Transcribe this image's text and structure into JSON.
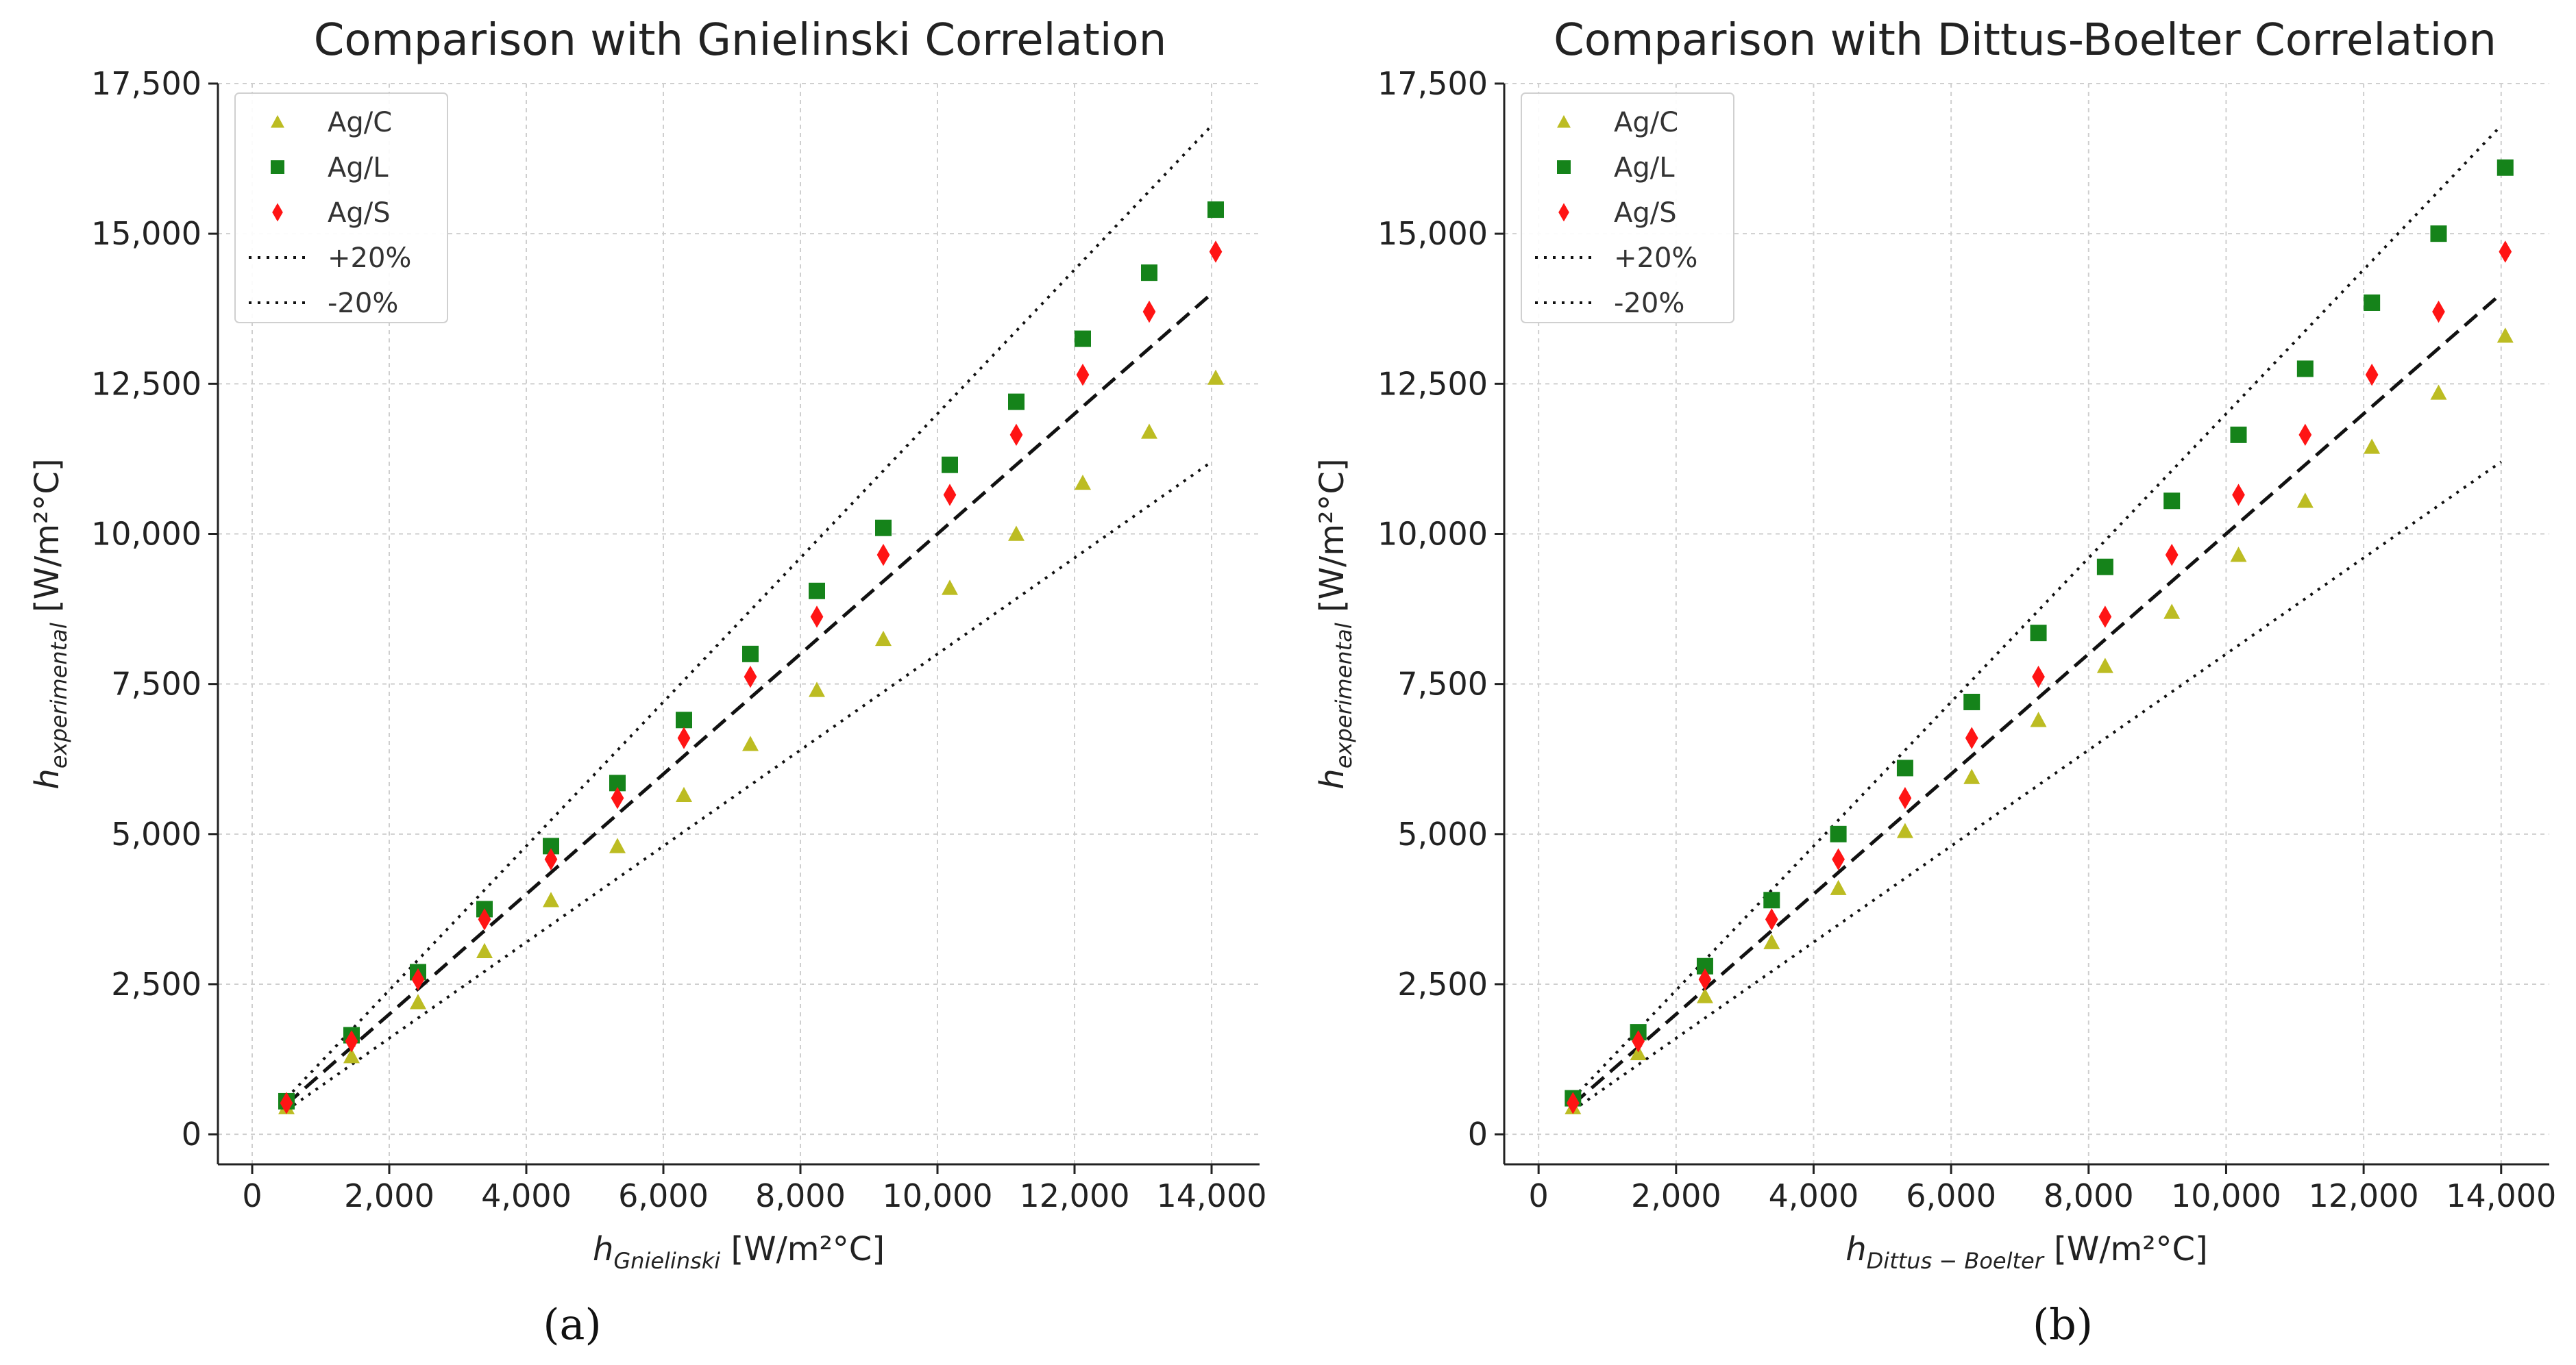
{
  "chart_data": [
    {
      "type": "scatter",
      "title": "Comparison with Gnielinski Correlation",
      "xlabel_sym": "h",
      "xlabel_sub": "Gnielinski",
      "xlabel_unit": " [W/m²°C]",
      "ylabel_sym": "h",
      "ylabel_sub": "experimental",
      "ylabel_unit": " [W/m²°C]",
      "xlim": [
        -500,
        14700
      ],
      "ylim": [
        -500,
        17500
      ],
      "xticks": [
        0,
        2000,
        4000,
        6000,
        8000,
        10000,
        12000,
        14000
      ],
      "xtick_labels": [
        "0",
        "2,000",
        "4,000",
        "6,000",
        "8,000",
        "10,000",
        "12,000",
        "14,000"
      ],
      "yticks": [
        0,
        2500,
        5000,
        7500,
        10000,
        12500,
        15000,
        17500
      ],
      "ytick_labels": [
        "0",
        "2,500",
        "5,000",
        "7,500",
        "10,000",
        "12,500",
        "15,000",
        "17,500"
      ],
      "grid": true,
      "legend_position": "top-left",
      "x": [
        500,
        1450,
        2420,
        3390,
        4360,
        5330,
        6300,
        7270,
        8240,
        9210,
        10180,
        11150,
        12120,
        13090,
        14060
      ],
      "series": [
        {
          "name": "Ag/C",
          "marker": "triangle",
          "color": "#bcbc22",
          "values": [
            450,
            1300,
            2200,
            3050,
            3900,
            4800,
            5650,
            6500,
            7400,
            8250,
            9100,
            10000,
            10850,
            11700,
            12600
          ]
        },
        {
          "name": "Ag/L",
          "marker": "square",
          "color": "#15831a",
          "values": [
            550,
            1650,
            2700,
            3750,
            4800,
            5850,
            6900,
            8000,
            9050,
            10100,
            11150,
            12200,
            13250,
            14350,
            15400
          ]
        },
        {
          "name": "Ag/S",
          "marker": "diamond",
          "color": "#ff1414",
          "values": [
            520,
            1550,
            2580,
            3580,
            4580,
            5600,
            6600,
            7620,
            8620,
            9650,
            10650,
            11650,
            12650,
            13700,
            14700
          ]
        }
      ],
      "reference_lines": [
        {
          "name": "+20%",
          "factor": 1.2,
          "style": "dotted"
        },
        {
          "name": "-20%",
          "factor": 0.8,
          "style": "dotted"
        },
        {
          "name": "",
          "factor": 1.0,
          "style": "dashed"
        }
      ],
      "line_range": [
        500,
        14000
      ]
    },
    {
      "type": "scatter",
      "title": "Comparison with Dittus-Boelter Correlation",
      "xlabel_sym": "h",
      "xlabel_sub": "Dittus − Boelter",
      "xlabel_unit": " [W/m²°C]",
      "ylabel_sym": "h",
      "ylabel_sub": "experimental",
      "ylabel_unit": " [W/m²°C]",
      "xlim": [
        -500,
        14700
      ],
      "ylim": [
        -500,
        17500
      ],
      "xticks": [
        0,
        2000,
        4000,
        6000,
        8000,
        10000,
        12000,
        14000
      ],
      "xtick_labels": [
        "0",
        "2,000",
        "4,000",
        "6,000",
        "8,000",
        "10,000",
        "12,000",
        "14,000"
      ],
      "yticks": [
        0,
        2500,
        5000,
        7500,
        10000,
        12500,
        15000,
        17500
      ],
      "ytick_labels": [
        "0",
        "2,500",
        "5,000",
        "7,500",
        "10,000",
        "12,500",
        "15,000",
        "17,500"
      ],
      "grid": true,
      "legend_position": "top-left",
      "x": [
        500,
        1450,
        2420,
        3390,
        4360,
        5330,
        6300,
        7270,
        8240,
        9210,
        10180,
        11150,
        12120,
        13090,
        14060
      ],
      "series": [
        {
          "name": "Ag/C",
          "marker": "triangle",
          "color": "#bcbc22",
          "values": [
            450,
            1350,
            2300,
            3200,
            4100,
            5050,
            5950,
            6900,
            7800,
            8700,
            9650,
            10550,
            11450,
            12350,
            13300
          ]
        },
        {
          "name": "Ag/L",
          "marker": "square",
          "color": "#15831a",
          "values": [
            600,
            1700,
            2800,
            3900,
            5000,
            6100,
            7200,
            8350,
            9450,
            10550,
            11650,
            12750,
            13850,
            15000,
            16100
          ]
        },
        {
          "name": "Ag/S",
          "marker": "diamond",
          "color": "#ff1414",
          "values": [
            520,
            1550,
            2580,
            3580,
            4580,
            5600,
            6600,
            7620,
            8620,
            9650,
            10650,
            11650,
            12650,
            13700,
            14700
          ]
        }
      ],
      "reference_lines": [
        {
          "name": "+20%",
          "factor": 1.2,
          "style": "dotted"
        },
        {
          "name": "-20%",
          "factor": 0.8,
          "style": "dotted"
        },
        {
          "name": "",
          "factor": 1.0,
          "style": "dashed"
        }
      ],
      "line_range": [
        500,
        14000
      ]
    }
  ],
  "subfigure_labels": [
    "(a)",
    "(b)"
  ]
}
